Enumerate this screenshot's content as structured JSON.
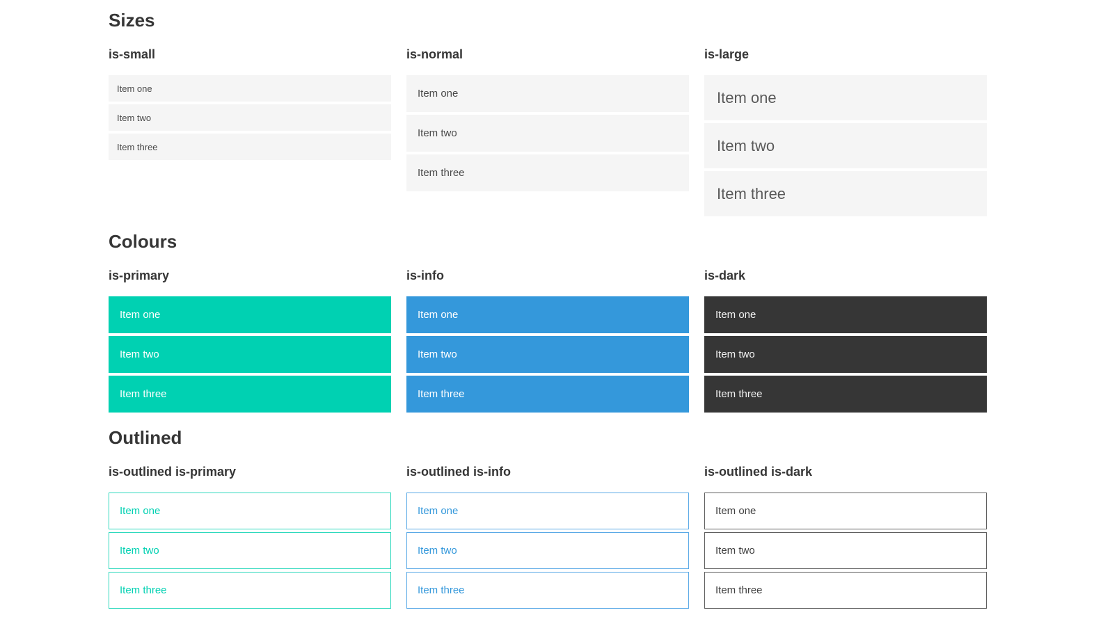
{
  "colors": {
    "primary": "#00d1b2",
    "info": "#3498db",
    "dark": "#363636",
    "item_background": "#f5f5f5",
    "item_text": "#4a4a4a",
    "heading_text": "#363636",
    "page_background": "#ffffff"
  },
  "sections": [
    {
      "title": "Sizes",
      "columns": [
        {
          "heading": "is-small",
          "items": [
            "Item one",
            "Item two",
            "Item three"
          ]
        },
        {
          "heading": "is-normal",
          "items": [
            "Item one",
            "Item two",
            "Item three"
          ]
        },
        {
          "heading": "is-large",
          "items": [
            "Item one",
            "Item two",
            "Item three"
          ]
        }
      ]
    },
    {
      "title": "Colours",
      "columns": [
        {
          "heading": "is-primary",
          "items": [
            "Item one",
            "Item two",
            "Item three"
          ]
        },
        {
          "heading": "is-info",
          "items": [
            "Item one",
            "Item two",
            "Item three"
          ]
        },
        {
          "heading": "is-dark",
          "items": [
            "Item one",
            "Item two",
            "Item three"
          ]
        }
      ]
    },
    {
      "title": "Outlined",
      "columns": [
        {
          "heading": "is-outlined is-primary",
          "items": [
            "Item one",
            "Item two",
            "Item three"
          ]
        },
        {
          "heading": "is-outlined is-info",
          "items": [
            "Item one",
            "Item two",
            "Item three"
          ]
        },
        {
          "heading": "is-outlined is-dark",
          "items": [
            "Item one",
            "Item two",
            "Item three"
          ]
        }
      ]
    }
  ]
}
